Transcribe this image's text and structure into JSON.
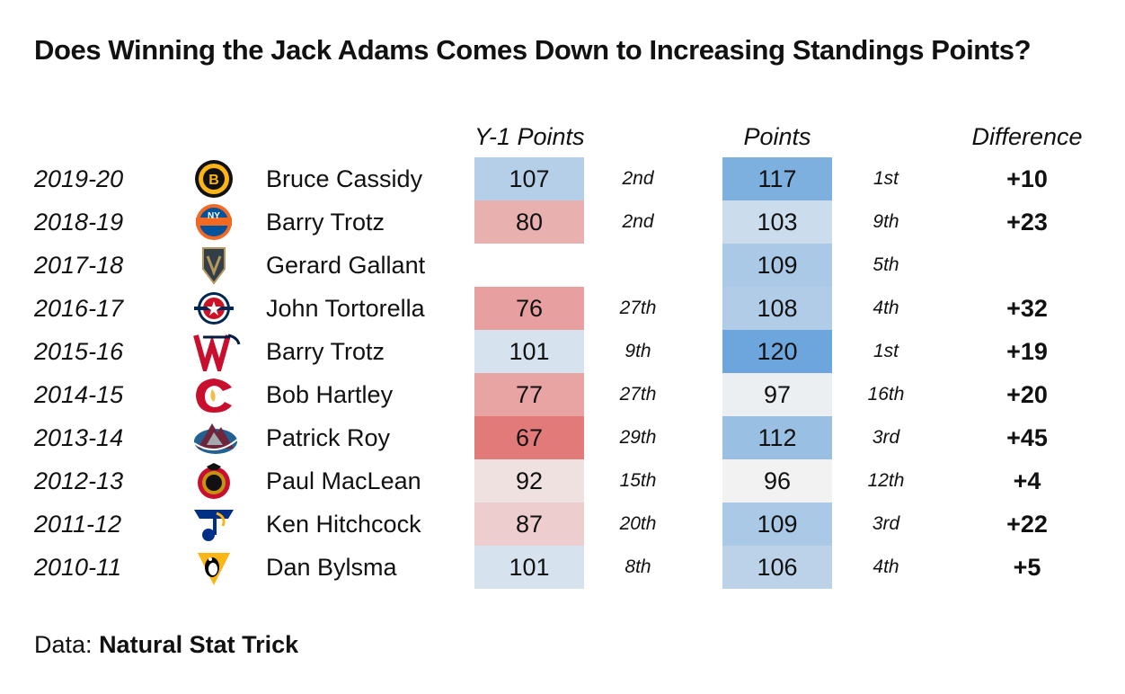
{
  "chart_data": {
    "type": "table",
    "title": "Does Winning the Jack Adams Comes Down to Increasing Standings Points?",
    "columns": [
      "",
      "",
      "",
      "Y-1 Points",
      "",
      "Points",
      "",
      "Difference"
    ],
    "rows": [
      {
        "season": "2019-20",
        "team_logo": "bruins-logo",
        "coach": "Bruce Cassidy",
        "prev_points": 107,
        "prev_rank": "2nd",
        "points": 117,
        "rank": "1st",
        "difference": "+10"
      },
      {
        "season": "2018-19",
        "team_logo": "islanders-logo",
        "coach": "Barry Trotz",
        "prev_points": 80,
        "prev_rank": "2nd",
        "points": 103,
        "rank": "9th",
        "difference": "+23"
      },
      {
        "season": "2017-18",
        "team_logo": "golden-knights-logo",
        "coach": "Gerard Gallant",
        "prev_points": null,
        "prev_rank": "",
        "points": 109,
        "rank": "5th",
        "difference": ""
      },
      {
        "season": "2016-17",
        "team_logo": "blue-jackets-logo",
        "coach": "John Tortorella",
        "prev_points": 76,
        "prev_rank": "27th",
        "points": 108,
        "rank": "4th",
        "difference": "+32"
      },
      {
        "season": "2015-16",
        "team_logo": "capitals-logo",
        "coach": "Barry Trotz",
        "prev_points": 101,
        "prev_rank": "9th",
        "points": 120,
        "rank": "1st",
        "difference": "+19"
      },
      {
        "season": "2014-15",
        "team_logo": "flames-logo",
        "coach": "Bob Hartley",
        "prev_points": 77,
        "prev_rank": "27th",
        "points": 97,
        "rank": "16th",
        "difference": "+20"
      },
      {
        "season": "2013-14",
        "team_logo": "avalanche-logo",
        "coach": "Patrick Roy",
        "prev_points": 67,
        "prev_rank": "29th",
        "points": 112,
        "rank": "3rd",
        "difference": "+45"
      },
      {
        "season": "2012-13",
        "team_logo": "senators-logo",
        "coach": "Paul MacLean",
        "prev_points": 92,
        "prev_rank": "15th",
        "points": 96,
        "rank": "12th",
        "difference": "+4"
      },
      {
        "season": "2011-12",
        "team_logo": "blues-logo",
        "coach": "Ken Hitchcock",
        "prev_points": 87,
        "prev_rank": "20th",
        "points": 109,
        "rank": "3rd",
        "difference": "+22"
      },
      {
        "season": "2010-11",
        "team_logo": "penguins-logo",
        "coach": "Dan Bylsma",
        "prev_points": 101,
        "prev_rank": "8th",
        "points": 106,
        "rank": "4th",
        "difference": "+5"
      }
    ],
    "color_scale": {
      "low_color": "#e27a7a",
      "mid_color": "#f2f2f2",
      "high_color": "#6da6dc",
      "low_value": 67,
      "mid_value": 96,
      "high_value": 120
    }
  },
  "footer": {
    "label": "Data:",
    "source": "Natural Stat Trick"
  }
}
